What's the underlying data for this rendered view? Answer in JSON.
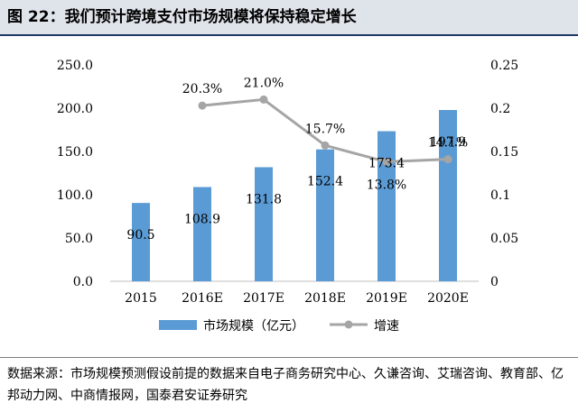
{
  "figure": {
    "title": "图  22：我们预计跨境支付市场规模将保持稳定增长",
    "source": "数据来源：市场规模预测假设前提的数据来自电子商务研究中心、久谦咨询、艾瑞咨询、教育部、亿邦动力网、中商情报网，国泰君安证券研究"
  },
  "chart_data": {
    "type": "bar",
    "categories": [
      "2015",
      "2016E",
      "2017E",
      "2018E",
      "2019E",
      "2020E"
    ],
    "series": [
      {
        "name": "市场规模（亿元）",
        "kind": "bar",
        "axis": "left",
        "color": "#5b9bd5",
        "values": [
          90.5,
          108.9,
          131.8,
          152.4,
          173.4,
          197.9
        ],
        "labels": [
          "90.5",
          "108.9",
          "131.8",
          "152.4",
          "173.4",
          "197.9"
        ]
      },
      {
        "name": "增速",
        "kind": "line",
        "axis": "right",
        "color": "#a5a5a5",
        "values": [
          null,
          0.203,
          0.21,
          0.157,
          0.138,
          0.141
        ],
        "labels": [
          "",
          "20.3%",
          "21.0%",
          "15.7%",
          "13.8%",
          "14.1%"
        ]
      }
    ],
    "y_left": {
      "min": 0,
      "max": 250,
      "ticks": [
        "0.0",
        "50.0",
        "100.0",
        "150.0",
        "200.0",
        "250.0"
      ]
    },
    "y_right": {
      "min": 0,
      "max": 0.25,
      "ticks": [
        "0",
        "0.05",
        "0.1",
        "0.15",
        "0.2",
        "0.25"
      ]
    },
    "grid": false,
    "legend_position": "bottom"
  }
}
